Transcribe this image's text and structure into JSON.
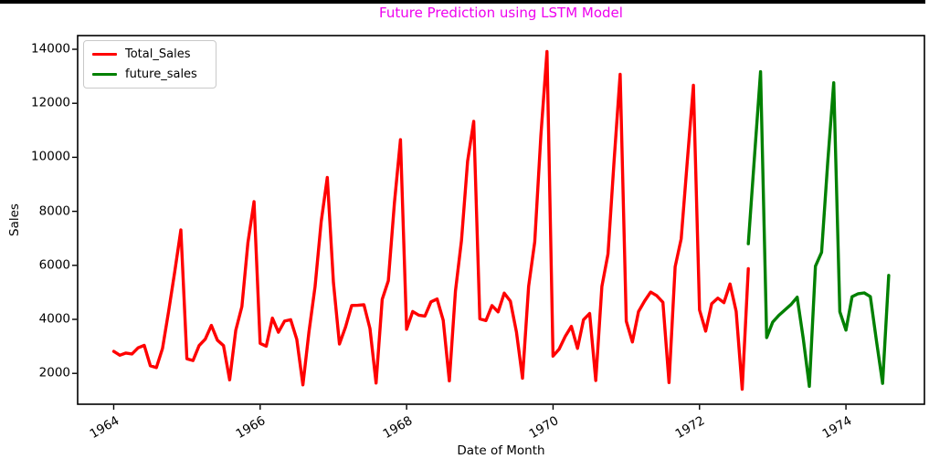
{
  "decor": {
    "top_edge_bar_color": "#000000"
  },
  "chart_data": {
    "type": "line",
    "title": "Future Prediction using LSTM Model",
    "title_color": "#ee00ee",
    "xlabel": "Date of Month",
    "ylabel": "Sales",
    "grid": false,
    "background": "#ffffff",
    "legend": {
      "position": "upper-left",
      "entries": [
        "Total_Sales",
        "future_sales"
      ]
    },
    "x_axis": {
      "unit": "months since 1964-01",
      "lim": [
        -5.91,
        132.86
      ],
      "ticks": [
        {
          "label": "1964",
          "month": 0
        },
        {
          "label": "1966",
          "month": 24
        },
        {
          "label": "1968",
          "month": 48
        },
        {
          "label": "1970",
          "month": 72
        },
        {
          "label": "1972",
          "month": 96
        },
        {
          "label": "1974",
          "month": 120
        }
      ]
    },
    "y_axis": {
      "lim": [
        858,
        14507
      ],
      "ticks": [
        2000,
        4000,
        6000,
        8000,
        10000,
        12000,
        14000
      ]
    },
    "series": [
      {
        "name": "Total_Sales",
        "color": "#ff0000",
        "first_month": "1964-01",
        "start_month_index": 0,
        "values": [
          2815,
          2672,
          2755,
          2721,
          2946,
          3036,
          2282,
          2212,
          2922,
          4301,
          5764,
          7312,
          2541,
          2475,
          3031,
          3266,
          3776,
          3230,
          3028,
          1759,
          3595,
          4474,
          6838,
          8357,
          3113,
          3006,
          4047,
          3523,
          3937,
          3986,
          3260,
          1573,
          3528,
          5211,
          7614,
          9254,
          5375,
          3088,
          3718,
          4514,
          4520,
          4539,
          3663,
          1643,
          4739,
          5428,
          8314,
          10651,
          3633,
          4292,
          4154,
          4121,
          4647,
          4753,
          3965,
          1723,
          5048,
          6922,
          9858,
          11331,
          4016,
          3957,
          4510,
          4276,
          4968,
          4677,
          3523,
          1821,
          5222,
          6872,
          10803,
          13916,
          2639,
          2899,
          3370,
          3740,
          2927,
          3986,
          4217,
          1738,
          5221,
          6424,
          9842,
          13076,
          3934,
          3162,
          4286,
          4676,
          5010,
          4874,
          4633,
          1659,
          5951,
          6981,
          9851,
          12670,
          4348,
          3564,
          4577,
          4788,
          4618,
          5312,
          4298,
          1413,
          5877
        ]
      },
      {
        "name": "future_sales",
        "color": "#008000",
        "first_month": "1972-09",
        "start_month_index": 104,
        "values": [
          6800,
          10000,
          13170,
          3325,
          3900,
          4150,
          4350,
          4550,
          4820,
          3300,
          1520,
          5970,
          6480,
          9800,
          12760,
          4280,
          3600,
          4840,
          4950,
          4980,
          4840,
          3200,
          1630,
          5630
        ]
      }
    ]
  }
}
